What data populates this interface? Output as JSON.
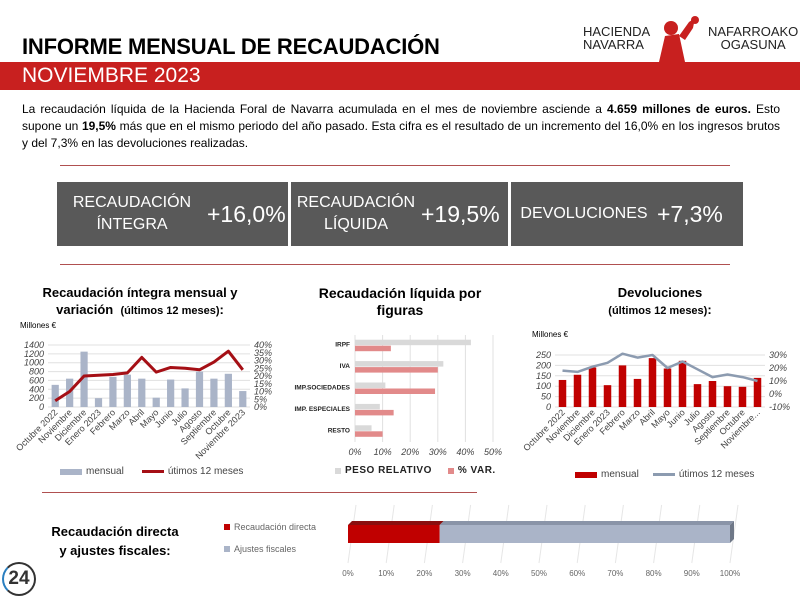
{
  "header": {
    "title": "INFORME MENSUAL DE RECAUDACIÓN",
    "subtitle": "NOVIEMBRE 2023",
    "logo": {
      "left_line1": "HACIENDA",
      "left_line2": "NAVARRA",
      "right_line1": "NAFARROAKO",
      "right_line2": "OGASUNA"
    }
  },
  "intro": {
    "p1": "La recaudación líquida de la Hacienda Foral de Navarra acumulada en el mes de noviembre asciende a ",
    "b1": "4.659 millones de euros.",
    "p2": " Esto supone un ",
    "b2": "19,5%",
    "p3": " más que en el mismo periodo del año pasado. Esta cifra es el resultado de un incremento del 16,0% en los ingresos brutos y del 7,3% en las devoluciones realizadas."
  },
  "kpis": [
    {
      "label1": "RECAUDACIÓN",
      "label2": "ÍNTEGRA",
      "value": "+16,0%"
    },
    {
      "label1": "RECAUDACIÓN",
      "label2": "LÍQUIDA",
      "value": "+19,5%"
    },
    {
      "label1": "DEVOLUCIONES",
      "label2": "",
      "value": "+7,3%"
    }
  ],
  "colors": {
    "red": "#c8201f",
    "dark_red": "#a50f15",
    "gray_bar": "#aab4c8",
    "gray_line": "#8c9bb0",
    "kpi_bg": "#595959"
  },
  "chart_data": [
    {
      "type": "bar",
      "title1": "Recaudación íntegra mensual y",
      "title2": "variación",
      "title_small": "(últimos 12 meses)",
      "title_end": ":",
      "unit": "Millones €",
      "categories": [
        "Octubre 2022",
        "Noviembre",
        "Diciembre",
        "Enero 2023",
        "Febrero",
        "Marzo",
        "Abril",
        "Mayo",
        "Junio",
        "Julio",
        "Agosto",
        "Septiembre",
        "Octubre",
        "Noviembre 2023"
      ],
      "series": [
        {
          "name": "mensual",
          "values": [
            500,
            640,
            1250,
            200,
            680,
            730,
            640,
            210,
            620,
            420,
            800,
            640,
            750,
            360
          ]
        },
        {
          "name": "útimos 12 meses",
          "values": [
            4,
            10,
            20,
            20.5,
            21,
            22,
            32,
            22.5,
            25.5,
            25,
            24,
            29,
            36,
            24
          ]
        }
      ],
      "ylim": [
        0,
        1400
      ],
      "yticks": [
        "0",
        "200",
        "400",
        "600",
        "800",
        "1000",
        "1200",
        "1400"
      ],
      "y2lim": [
        0,
        40
      ],
      "y2ticks": [
        "0%",
        "5%",
        "10%",
        "15%",
        "20%",
        "25%",
        "30%",
        "35%",
        "40%"
      ]
    },
    {
      "type": "bar",
      "title1": "Recaudación líquida por",
      "title2": "figuras",
      "categories": [
        "IRPF",
        "IVA",
        "IMP.SOCIEDADES",
        "IMP. ESPECIALES",
        "RESTO"
      ],
      "series": [
        {
          "name": "PESO RELATIVO",
          "values": [
            42,
            32,
            11,
            9,
            6
          ]
        },
        {
          "name": "% VAR.",
          "values": [
            13,
            30,
            29,
            14,
            10
          ]
        }
      ],
      "xlim": [
        0,
        50
      ],
      "xticks": [
        "0%",
        "10%",
        "20%",
        "30%",
        "40%",
        "50%"
      ]
    },
    {
      "type": "bar",
      "title1": "Devoluciones",
      "title_small": "(últimos 12 meses)",
      "title_end": ":",
      "unit": "Millones €",
      "categories": [
        "Octubre 2022",
        "Noviembre",
        "Diciembre",
        "Enero 2023",
        "Febrero",
        "Marzo",
        "Abril",
        "Mayo",
        "Junio",
        "Julio",
        "Agosto",
        "Septiembre",
        "Octubre",
        "Noviembre..."
      ],
      "series": [
        {
          "name": "mensual",
          "values": [
            130,
            155,
            190,
            105,
            200,
            135,
            235,
            185,
            222,
            110,
            125,
            100,
            97,
            140
          ]
        },
        {
          "name": "útimos 12 meses",
          "values": [
            18,
            17,
            21,
            24,
            31,
            28,
            30,
            20,
            25,
            19,
            13,
            15,
            13,
            10
          ]
        }
      ],
      "ylim": [
        0,
        250
      ],
      "yticks": [
        "0",
        "50",
        "100",
        "150",
        "200",
        "250"
      ],
      "y2lim": [
        -10,
        30
      ],
      "y2ticks": [
        "-10%",
        "0%",
        "10%",
        "20%",
        "30%"
      ]
    },
    {
      "type": "bar",
      "title1": "Recaudación directa",
      "title2": "y ajustes fiscales:",
      "series": [
        {
          "name": "Recaudación directa",
          "values": [
            24
          ]
        },
        {
          "name": "Ajustes fiscales",
          "values": [
            76
          ]
        }
      ],
      "xlim": [
        0,
        100
      ],
      "xticks": [
        "0%",
        "10%",
        "20%",
        "30%",
        "40%",
        "50%",
        "60%",
        "70%",
        "80%",
        "90%",
        "100%"
      ]
    }
  ],
  "watermark": "24"
}
